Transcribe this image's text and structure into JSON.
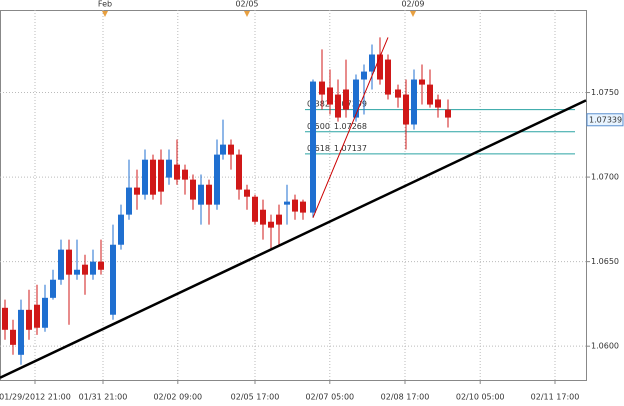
{
  "chart_data": {
    "type": "candlestick",
    "x": [
      0,
      1,
      2,
      3,
      4,
      5,
      6,
      7,
      8,
      9,
      10,
      11,
      12,
      13.5,
      14.5,
      15.5,
      16.5,
      17.5,
      18.5,
      19.5,
      20.5,
      21.5,
      22.5,
      23.5,
      24.5,
      25.5,
      26.5,
      27.25,
      28.25,
      29.25,
      30.25,
      31.25,
      32.25,
      33.25,
      34.25,
      35.25,
      36.25,
      37.25,
      38.5,
      39.625,
      40.625,
      41.625,
      42.625,
      43.875,
      44.875,
      45.875,
      46.875,
      47.875,
      49.125,
      50.125,
      51.125,
      52.125,
      53.125,
      54.125,
      55.375
    ],
    "open": [
      1.06227,
      1.06097,
      1.05949,
      1.06215,
      1.06245,
      1.06109,
      1.06286,
      1.06393,
      1.06571,
      1.06423,
      1.06482,
      1.06423,
      1.065,
      1.06186,
      1.066,
      1.06778,
      1.06938,
      1.06896,
      1.07103,
      1.07103,
      1.06997,
      1.07074,
      1.07044,
      1.06985,
      1.06837,
      1.06955,
      1.06837,
      1.07133,
      1.07192,
      1.07133,
      1.06926,
      1.06884,
      1.06807,
      1.06736,
      1.06778,
      1.06837,
      1.06867,
      1.06855,
      1.0679,
      1.07565,
      1.0753,
      1.07488,
      1.07518,
      1.07352,
      1.07577,
      1.07624,
      1.07725,
      1.07695,
      1.07518,
      1.07488,
      1.07311,
      1.07577,
      1.07547,
      1.07459,
      1.07399
    ],
    "close": [
      1.06097,
      1.06008,
      1.06215,
      1.06097,
      1.06109,
      1.06286,
      1.06393,
      1.06571,
      1.06423,
      1.06452,
      1.06423,
      1.065,
      1.06452,
      1.066,
      1.06778,
      1.06938,
      1.06896,
      1.07103,
      1.06896,
      1.06914,
      1.07103,
      1.06985,
      1.06985,
      1.06867,
      1.06955,
      1.06837,
      1.07133,
      1.07192,
      1.07133,
      1.06926,
      1.06884,
      1.06736,
      1.06719,
      1.06701,
      1.06719,
      1.06855,
      1.06796,
      1.0679,
      1.07565,
      1.07488,
      1.07429,
      1.07352,
      1.07399,
      1.07577,
      1.07624,
      1.07725,
      1.07577,
      1.07488,
      1.0747,
      1.07311,
      1.07577,
      1.07547,
      1.07429,
      1.07411,
      1.07352
    ],
    "high": [
      1.06275,
      1.06156,
      1.06275,
      1.06334,
      1.06363,
      1.06363,
      1.06452,
      1.0663,
      1.0663,
      1.0663,
      1.06541,
      1.06571,
      1.0663,
      1.06719,
      1.06837,
      1.07103,
      1.07044,
      1.07163,
      1.07133,
      1.07163,
      1.07163,
      1.07222,
      1.07074,
      1.07015,
      1.07015,
      1.06985,
      1.07222,
      1.0734,
      1.07222,
      1.07163,
      1.06955,
      1.06896,
      1.06867,
      1.06778,
      1.06837,
      1.06955,
      1.06896,
      1.06867,
      1.07577,
      1.07755,
      1.07636,
      1.07577,
      1.07695,
      1.07607,
      1.07666,
      1.07784,
      1.07826,
      1.07725,
      1.07547,
      1.07577,
      1.07636,
      1.07666,
      1.07636,
      1.07488,
      1.07459
    ],
    "low": [
      1.06038,
      1.05949,
      1.0589,
      1.06038,
      1.06067,
      1.06085,
      1.06275,
      1.06363,
      1.06127,
      1.06393,
      1.06304,
      1.06393,
      1.06423,
      1.06156,
      1.06571,
      1.06748,
      1.06807,
      1.06867,
      1.06867,
      1.06837,
      1.06955,
      1.06955,
      1.06896,
      1.06807,
      1.06719,
      1.06719,
      1.06807,
      1.07103,
      1.07044,
      1.06867,
      1.06807,
      1.06719,
      1.0663,
      1.06571,
      1.066,
      1.06719,
      1.06748,
      1.06748,
      1.0676,
      1.07399,
      1.0737,
      1.07328,
      1.07352,
      1.07328,
      1.0737,
      1.07518,
      1.07547,
      1.07459,
      1.07411,
      1.07163,
      1.07281,
      1.07429,
      1.07411,
      1.07352,
      1.07293
    ],
    "up_color": "#1f6fd0",
    "down_color": "#d01818",
    "xlim": [
      -0.625,
      72.625
    ],
    "ylim": [
      1.058,
      1.08
    ],
    "yticks": [
      {
        "value": 1.06,
        "label": "1.0600"
      },
      {
        "value": 1.065,
        "label": "1.0650"
      },
      {
        "value": 1.07,
        "label": "1.0700"
      },
      {
        "value": 1.075,
        "label": "1.0750"
      }
    ],
    "xticks": [
      {
        "value": 3.75,
        "label": "01/29/2012 21:00"
      },
      {
        "value": 12.25,
        "label": "01/31 21:00"
      },
      {
        "value": 21.6,
        "label": "02/02 09:00"
      },
      {
        "value": 31.25,
        "label": "02/05 17:00"
      },
      {
        "value": 40.6,
        "label": "02/07 05:00"
      },
      {
        "value": 50,
        "label": "02/08 17:00"
      },
      {
        "value": 59.4,
        "label": "02/10 05:00"
      },
      {
        "value": 68.75,
        "label": "02/11 17:00"
      }
    ],
    "top_markers": [
      {
        "value": 12.5,
        "label": "Feb"
      },
      {
        "value": 30.25,
        "label": "02/05"
      },
      {
        "value": 51,
        "label": "02/09"
      }
    ],
    "grid": true,
    "trendline": {
      "x": [
        -0.625,
        72.625
      ],
      "y": [
        1.05813,
        1.07454
      ],
      "color": "#000000"
    },
    "fib_line": {
      "x": [
        38.5,
        47.875
      ],
      "y": [
        1.0676,
        1.07826
      ],
      "color": "#cc0000"
    },
    "fib_levels": [
      {
        "ratio": 0.382,
        "price": 1.07399
      },
      {
        "ratio": {
          "value": 0.5,
          "label": "0.500"
        },
        "price": 1.07268
      },
      {
        "ratio": 0.618,
        "price": 1.07137
      }
    ],
    "fib_start": 37.5,
    "fib_end": 71.25,
    "fib_color": "#2aa3a3",
    "current_price": 1.07339
  }
}
